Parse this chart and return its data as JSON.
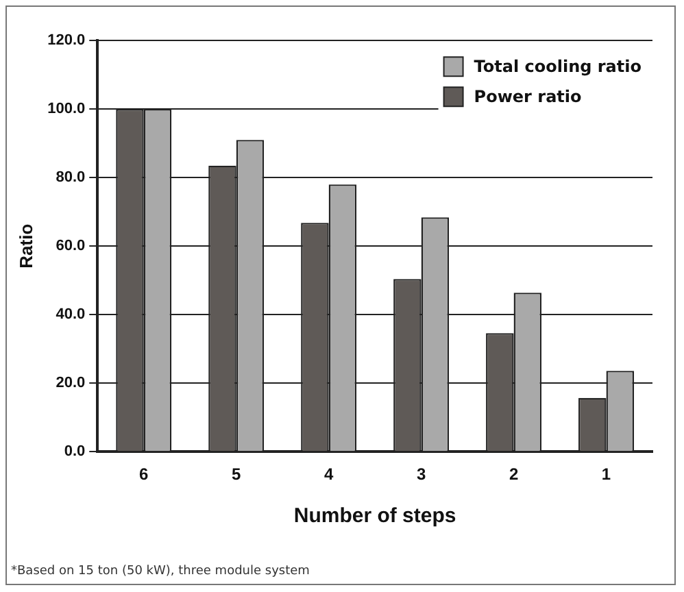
{
  "chart_data": {
    "type": "bar",
    "xlabel": "Number of steps",
    "ylabel": "Ratio",
    "categories": [
      "6",
      "5",
      "4",
      "3",
      "2",
      "1"
    ],
    "series": [
      {
        "name": "Power ratio",
        "color": "#5f5a57",
        "values": [
          100,
          83.5,
          66.8,
          50.4,
          34.6,
          15.7
        ]
      },
      {
        "name": "Total cooling ratio",
        "color": "#a9a9a9",
        "values": [
          100,
          91,
          78,
          68.4,
          46.4,
          23.6
        ]
      }
    ],
    "ylim": [
      0,
      120
    ],
    "yticks": [
      {
        "value": 0,
        "label": "0.0"
      },
      {
        "value": 20,
        "label": "20.0"
      },
      {
        "value": 40,
        "label": "40.0"
      },
      {
        "value": 60,
        "label": "60.0"
      },
      {
        "value": 80,
        "label": "80.0"
      },
      {
        "value": 100,
        "label": "100.0"
      },
      {
        "value": 120,
        "label": "120.0"
      }
    ],
    "grid": "y",
    "legend": "top right",
    "annotations": [
      "*Based on 15 ton (50 kW), three module system"
    ]
  }
}
